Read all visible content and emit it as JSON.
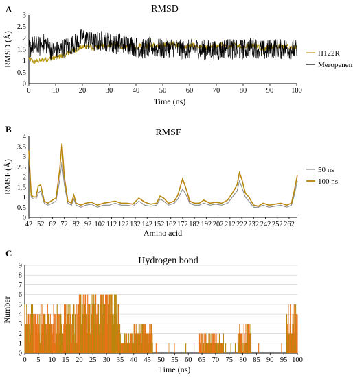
{
  "chart_data": [
    {
      "panel": "A",
      "type": "line",
      "title": "RMSD",
      "xlabel": "Time (ns)",
      "ylabel": "RMSD (Å)",
      "xlim": [
        0,
        100
      ],
      "ylim": [
        0,
        3
      ],
      "xticks": [
        0,
        10,
        20,
        30,
        40,
        50,
        60,
        70,
        80,
        90,
        100
      ],
      "yticks": [
        0,
        0.5,
        1,
        1.5,
        2,
        2.5,
        3
      ],
      "ytick_labels": [
        "0",
        "0.5",
        "1",
        "1.5",
        "2",
        "2.5",
        "3"
      ],
      "legend_position": "right",
      "series": [
        {
          "name": "H122R",
          "color": "#b8960c",
          "x": [
            0,
            2,
            4,
            6,
            8,
            10,
            12,
            14,
            16,
            18,
            20,
            22,
            24,
            26,
            28,
            30,
            32,
            34,
            36,
            38,
            40,
            42,
            44,
            46,
            48,
            50,
            52,
            54,
            56,
            58,
            60,
            62,
            64,
            66,
            68,
            70,
            72,
            74,
            76,
            78,
            80,
            82,
            84,
            86,
            88,
            90,
            92,
            94,
            96,
            98,
            100
          ],
          "values": [
            1.1,
            0.95,
            1.0,
            1.05,
            1.1,
            1.15,
            1.2,
            1.3,
            1.4,
            1.5,
            1.6,
            1.65,
            1.55,
            1.6,
            1.65,
            1.7,
            1.7,
            1.65,
            1.6,
            1.65,
            1.6,
            1.7,
            1.65,
            1.7,
            1.6,
            1.7,
            1.65,
            1.75,
            1.7,
            1.6,
            1.65,
            1.7,
            1.6,
            1.55,
            1.6,
            1.65,
            1.7,
            1.6,
            1.65,
            1.7,
            1.6,
            1.65,
            1.7,
            1.6,
            1.55,
            1.6,
            1.65,
            1.6,
            1.65,
            1.6,
            1.55
          ]
        },
        {
          "name": "Meropenem",
          "color": "#000000",
          "x": [
            0,
            2,
            4,
            6,
            8,
            10,
            12,
            14,
            16,
            18,
            20,
            22,
            24,
            26,
            28,
            30,
            32,
            34,
            36,
            38,
            40,
            42,
            44,
            46,
            48,
            50,
            52,
            54,
            56,
            58,
            60,
            62,
            64,
            66,
            68,
            70,
            72,
            74,
            76,
            78,
            80,
            82,
            84,
            86,
            88,
            90,
            92,
            94,
            96,
            98,
            100
          ],
          "values": [
            1.5,
            1.7,
            1.6,
            1.8,
            1.5,
            1.4,
            1.5,
            1.6,
            1.7,
            1.8,
            2.0,
            1.9,
            1.8,
            1.85,
            1.9,
            1.8,
            1.7,
            1.8,
            1.75,
            1.7,
            1.6,
            1.5,
            1.55,
            1.6,
            1.55,
            1.5,
            1.55,
            1.6,
            1.5,
            1.45,
            1.5,
            1.55,
            1.5,
            1.45,
            1.5,
            1.4,
            1.5,
            1.55,
            1.5,
            1.45,
            1.5,
            1.55,
            1.6,
            1.5,
            1.45,
            1.5,
            1.55,
            1.5,
            1.55,
            1.5,
            1.45
          ],
          "noise_amplitude": 0.45
        }
      ]
    },
    {
      "panel": "B",
      "type": "line",
      "title": "RMSF",
      "xlabel": "Amino acid",
      "ylabel": "RMSF (Å)",
      "xlim": [
        42,
        269
      ],
      "ylim": [
        0,
        4
      ],
      "xticks": [
        42,
        52,
        62,
        72,
        82,
        92,
        102,
        112,
        122,
        132,
        142,
        152,
        162,
        172,
        182,
        192,
        202,
        212,
        222,
        232,
        242,
        252,
        262
      ],
      "yticks": [
        0,
        0.5,
        1,
        1.5,
        2,
        2.5,
        3,
        3.5,
        4
      ],
      "ytick_labels": [
        "0",
        "0.5",
        "1",
        "1.5",
        "2",
        "2.5",
        "3",
        "3.5",
        "4"
      ],
      "legend_position": "right",
      "series": [
        {
          "name": "50 ns",
          "color": "#8c8c8c",
          "x": [
            42,
            44,
            46,
            48,
            50,
            52,
            55,
            58,
            62,
            65,
            68,
            70,
            72,
            75,
            78,
            80,
            82,
            86,
            90,
            95,
            100,
            105,
            110,
            115,
            120,
            125,
            130,
            135,
            140,
            145,
            150,
            153,
            156,
            160,
            165,
            168,
            172,
            175,
            178,
            182,
            186,
            190,
            195,
            200,
            205,
            210,
            214,
            218,
            220,
            222,
            225,
            228,
            232,
            236,
            240,
            245,
            250,
            255,
            260,
            264,
            266,
            269
          ],
          "values": [
            3.1,
            1.0,
            0.9,
            0.9,
            1.2,
            1.3,
            0.7,
            0.6,
            0.7,
            0.8,
            1.8,
            2.75,
            1.6,
            0.7,
            0.6,
            0.9,
            0.6,
            0.5,
            0.6,
            0.65,
            0.5,
            0.6,
            0.6,
            0.7,
            0.6,
            0.6,
            0.55,
            0.8,
            0.6,
            0.55,
            0.6,
            0.9,
            0.8,
            0.6,
            0.7,
            0.9,
            1.4,
            1.1,
            0.7,
            0.6,
            0.6,
            0.7,
            0.6,
            0.65,
            0.6,
            0.7,
            1.0,
            1.3,
            1.8,
            1.5,
            1.0,
            0.8,
            0.5,
            0.5,
            0.6,
            0.5,
            0.55,
            0.6,
            0.5,
            0.6,
            1.0,
            1.8
          ]
        },
        {
          "name": "100 ns",
          "color": "#b8860b",
          "x": [
            42,
            44,
            46,
            48,
            50,
            52,
            55,
            58,
            62,
            65,
            68,
            70,
            72,
            75,
            78,
            80,
            82,
            86,
            90,
            95,
            100,
            105,
            110,
            115,
            120,
            125,
            130,
            135,
            140,
            145,
            150,
            153,
            156,
            160,
            165,
            168,
            172,
            175,
            178,
            182,
            186,
            190,
            195,
            200,
            205,
            210,
            214,
            218,
            220,
            222,
            225,
            228,
            232,
            236,
            240,
            245,
            250,
            255,
            260,
            264,
            266,
            269
          ],
          "values": [
            3.3,
            1.1,
            1.0,
            1.0,
            1.55,
            1.6,
            0.8,
            0.7,
            0.85,
            0.95,
            2.3,
            3.65,
            2.0,
            0.8,
            0.7,
            1.1,
            0.7,
            0.6,
            0.7,
            0.75,
            0.6,
            0.7,
            0.75,
            0.8,
            0.7,
            0.7,
            0.65,
            0.95,
            0.75,
            0.65,
            0.7,
            1.05,
            0.95,
            0.7,
            0.8,
            1.1,
            1.9,
            1.4,
            0.8,
            0.7,
            0.7,
            0.85,
            0.7,
            0.75,
            0.7,
            0.85,
            1.2,
            1.6,
            2.2,
            1.9,
            1.2,
            1.0,
            0.6,
            0.55,
            0.7,
            0.6,
            0.65,
            0.7,
            0.6,
            0.7,
            1.2,
            2.1
          ]
        }
      ]
    },
    {
      "panel": "C",
      "type": "bar",
      "title": "Hydrogen bond",
      "xlabel": "Time (ns)",
      "ylabel": "Number",
      "xlim": [
        0,
        100
      ],
      "ylim": [
        0,
        9
      ],
      "xticks": [
        0,
        5,
        10,
        15,
        20,
        25,
        30,
        35,
        40,
        45,
        50,
        55,
        60,
        65,
        70,
        75,
        80,
        85,
        90,
        95,
        100
      ],
      "yticks": [
        0,
        1,
        2,
        3,
        4,
        5,
        6,
        7,
        8,
        9
      ],
      "ytick_labels": [
        "0",
        "1",
        "2",
        "3",
        "4",
        "5",
        "6",
        "7",
        "8",
        "9"
      ],
      "colors": [
        "#b8860b",
        "#e8731a"
      ],
      "segments": [
        {
          "from": 0,
          "to": 5,
          "level": 2.5,
          "spread": 2.5
        },
        {
          "from": 5,
          "to": 20,
          "level": 2.5,
          "spread": 2.5
        },
        {
          "from": 20,
          "to": 35,
          "level": 4,
          "spread": 2.5
        },
        {
          "from": 35,
          "to": 40,
          "level": 1,
          "spread": 1
        },
        {
          "from": 40,
          "to": 47,
          "level": 2,
          "spread": 1
        },
        {
          "from": 47,
          "to": 64,
          "level": 0,
          "spread": 1
        },
        {
          "from": 64,
          "to": 73,
          "level": 1,
          "spread": 1
        },
        {
          "from": 73,
          "to": 78,
          "level": 0,
          "spread": 1
        },
        {
          "from": 78,
          "to": 83,
          "level": 1.5,
          "spread": 1.5
        },
        {
          "from": 83,
          "to": 96,
          "level": 0,
          "spread": 1
        },
        {
          "from": 96,
          "to": 100,
          "level": 3,
          "spread": 2
        }
      ]
    }
  ]
}
